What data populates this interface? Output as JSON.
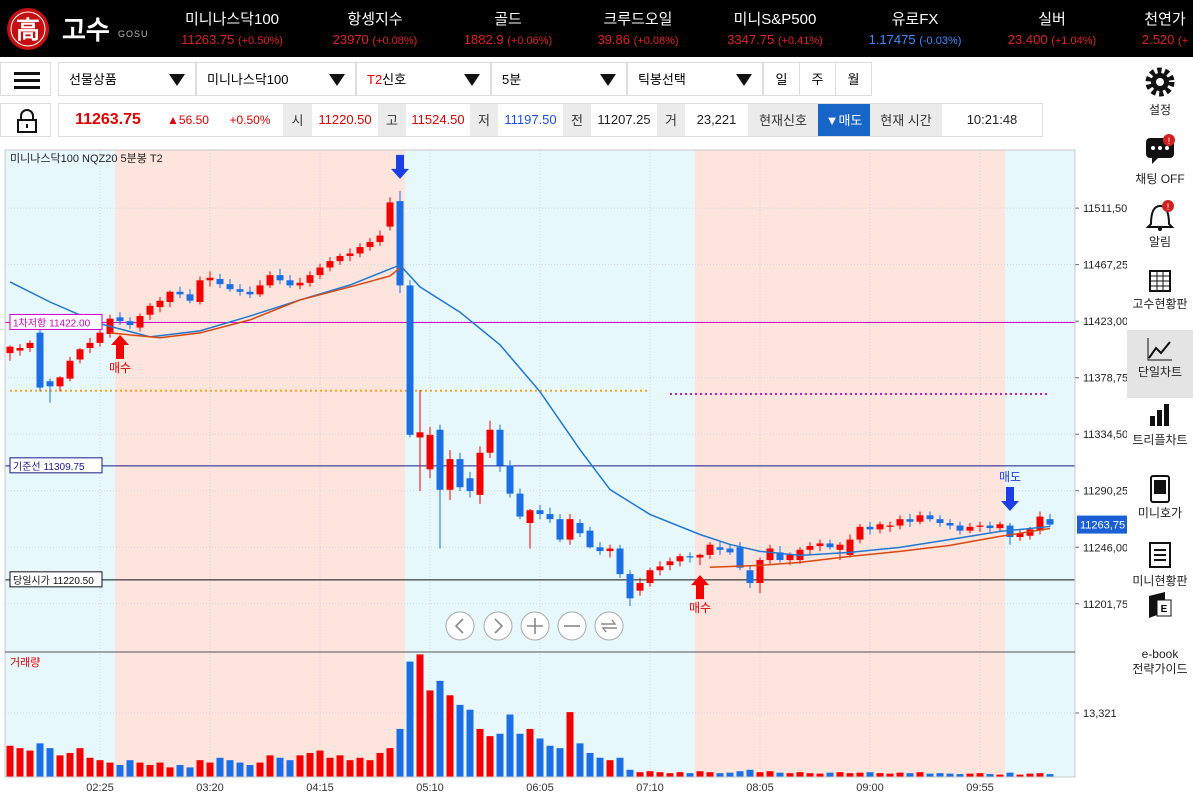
{
  "header": {
    "logo_char": "高",
    "logo_text": "고수",
    "logo_sub": "GOSU",
    "tickers": [
      {
        "name": "미니나스닥100",
        "price": "11263.75",
        "change": "(+0.50%)"
      },
      {
        "name": "항셍지수",
        "price": "23970",
        "change": "(+0.08%)"
      },
      {
        "name": "골드",
        "price": "1882.9",
        "change": "(+0.06%)"
      },
      {
        "name": "크루드오일",
        "price": "39.86",
        "change": "(+0.08%)"
      },
      {
        "name": "미니S&P500",
        "price": "3347.75",
        "change": "(+0.41%)"
      },
      {
        "name": "유로FX",
        "price": "1.17475",
        "change": "(-0.03%)"
      },
      {
        "name": "실버",
        "price": "23.400",
        "change": "(+1.04%)"
      },
      {
        "name": "천연가",
        "price": "2.520",
        "change": "(+"
      }
    ]
  },
  "toolbar": {
    "selects": [
      {
        "label": "선물상품"
      },
      {
        "label": "미니나스닥100"
      },
      {
        "prefix": "T2",
        "label": "신호"
      },
      {
        "label": "5분"
      },
      {
        "label": "틱봉선택"
      }
    ],
    "periods": [
      "일",
      "주",
      "월"
    ]
  },
  "quote": {
    "last": "11263.75",
    "change": "▲56.50",
    "rate": "+0.50%",
    "fields": [
      {
        "label": "시",
        "value": "11220.50"
      },
      {
        "label": "고",
        "value": "11524.50"
      },
      {
        "label": "저",
        "value": "11197.50"
      },
      {
        "label": "전",
        "value": "11207.25"
      },
      {
        "label": "거",
        "value": "23,221"
      }
    ],
    "signal_label": "현재신호",
    "signal": "▼매도",
    "time_label": "현재 시간",
    "time": "10:21:48"
  },
  "sidebar": [
    {
      "label": "설정"
    },
    {
      "label": "채팅 OFF"
    },
    {
      "label": "알림"
    },
    {
      "label": "고수현황판"
    },
    {
      "label": "단일차트"
    },
    {
      "label": "트리플차트"
    },
    {
      "label": "미니호가"
    },
    {
      "label": "미니현황판"
    },
    {
      "lines": [
        "e-book",
        "전략가이드"
      ]
    }
  ],
  "chart_data": {
    "type": "candlestick",
    "title": "미니나스닥100 NQZ20 5분봉 T2",
    "categories": [
      null,
      null,
      null,
      null,
      null,
      null,
      null,
      null,
      null,
      "02:25",
      null,
      null,
      null,
      null,
      null,
      null,
      null,
      null,
      null,
      null,
      "03:20",
      null,
      null,
      null,
      null,
      null,
      null,
      null,
      null,
      null,
      null,
      "04:15",
      null,
      null,
      null,
      null,
      null,
      null,
      null,
      null,
      null,
      null,
      "05:10",
      null,
      null,
      null,
      null,
      null,
      null,
      null,
      null,
      null,
      null,
      "06:05",
      null,
      null,
      null,
      null,
      null,
      null,
      null,
      null,
      null,
      null,
      "07:10",
      null,
      null,
      null,
      null,
      null,
      null,
      null,
      null,
      null,
      null,
      "08:05",
      null,
      null,
      null,
      null,
      null,
      null,
      null,
      null,
      null,
      null,
      "09:00",
      null,
      null,
      null,
      null,
      null,
      null,
      null,
      null,
      null,
      null,
      "09:55",
      null,
      null,
      null,
      null,
      null,
      null,
      null
    ],
    "ohlc": [
      [
        11398,
        11404,
        11392,
        11403
      ],
      [
        11400,
        11405,
        11396,
        11402
      ],
      [
        11402,
        11408,
        11399,
        11406
      ],
      [
        11414,
        11418,
        11368,
        11371
      ],
      [
        11376,
        11378,
        11359,
        11372
      ],
      [
        11372,
        11380,
        11368,
        11379
      ],
      [
        11378,
        11395,
        11376,
        11392
      ],
      [
        11393,
        11402,
        11390,
        11401
      ],
      [
        11402,
        11410,
        11398,
        11406
      ],
      [
        11406,
        11416,
        11403,
        11414
      ],
      [
        11413,
        11428,
        11410,
        11425
      ],
      [
        11426,
        11430,
        11420,
        11423
      ],
      [
        11423,
        11426,
        11417,
        11420
      ],
      [
        11418,
        11429,
        11415,
        11427
      ],
      [
        11428,
        11437,
        11424,
        11435
      ],
      [
        11434,
        11442,
        11430,
        11439
      ],
      [
        11438,
        11447,
        11434,
        11446
      ],
      [
        11446,
        11450,
        11441,
        11444
      ],
      [
        11444,
        11448,
        11437,
        11439
      ],
      [
        11438,
        11458,
        11436,
        11455
      ],
      [
        11455,
        11462,
        11450,
        11457
      ],
      [
        11456,
        11460,
        11449,
        11452
      ],
      [
        11452,
        11456,
        11446,
        11448
      ],
      [
        11448,
        11452,
        11443,
        11446
      ],
      [
        11446,
        11450,
        11441,
        11444
      ],
      [
        11444,
        11455,
        11442,
        11451
      ],
      [
        11451,
        11462,
        11449,
        11459
      ],
      [
        11459,
        11464,
        11452,
        11455
      ],
      [
        11455,
        11459,
        11449,
        11451
      ],
      [
        11451,
        11457,
        11448,
        11453
      ],
      [
        11453,
        11462,
        11450,
        11459
      ],
      [
        11459,
        11468,
        11456,
        11465
      ],
      [
        11465,
        11473,
        11462,
        11470
      ],
      [
        11470,
        11476,
        11467,
        11474
      ],
      [
        11474,
        11480,
        11470,
        11476
      ],
      [
        11476,
        11484,
        11473,
        11481
      ],
      [
        11481,
        11488,
        11478,
        11485
      ],
      [
        11485,
        11494,
        11482,
        11490
      ],
      [
        11497,
        11520,
        11494,
        11516
      ],
      [
        11517,
        11525,
        11445,
        11451
      ],
      [
        11451,
        11455,
        11332,
        11334
      ],
      [
        11332,
        11369,
        11290,
        11336
      ],
      [
        11307,
        11340,
        11300,
        11334
      ],
      [
        11338,
        11342,
        11245,
        11291
      ],
      [
        11291,
        11322,
        11283,
        11315
      ],
      [
        11315,
        11320,
        11290,
        11293
      ],
      [
        11300,
        11305,
        11285,
        11290
      ],
      [
        11287,
        11325,
        11280,
        11320
      ],
      [
        11320,
        11345,
        11316,
        11338
      ],
      [
        11338,
        11342,
        11305,
        11310
      ],
      [
        11310,
        11314,
        11285,
        11288
      ],
      [
        11288,
        11292,
        11268,
        11270
      ],
      [
        11265,
        11276,
        11245,
        11275
      ],
      [
        11275,
        11279,
        11268,
        11272
      ],
      [
        11272,
        11277,
        11265,
        11268
      ],
      [
        11268,
        11272,
        11250,
        11252
      ],
      [
        11252,
        11272,
        11248,
        11268
      ],
      [
        11265,
        11268,
        11254,
        11257
      ],
      [
        11259,
        11262,
        11245,
        11246
      ],
      [
        11246,
        11250,
        11240,
        11243
      ],
      [
        11243,
        11248,
        11238,
        11245
      ],
      [
        11245,
        11248,
        11222,
        11225
      ],
      [
        11225,
        11228,
        11200,
        11206
      ],
      [
        11212,
        11222,
        11208,
        11218
      ],
      [
        11218,
        11230,
        11215,
        11228
      ],
      [
        11228,
        11235,
        11224,
        11231
      ],
      [
        11232,
        11238,
        11228,
        11235
      ],
      [
        11235,
        11241,
        11231,
        11239
      ],
      [
        11239,
        11242,
        11234,
        11238
      ],
      [
        11238,
        11241,
        11232,
        11240
      ],
      [
        11240,
        11250,
        11237,
        11248
      ],
      [
        11246,
        11250,
        11240,
        11244
      ],
      [
        11245,
        11248,
        11240,
        11242
      ],
      [
        11246,
        11250,
        11228,
        11230
      ],
      [
        11228,
        11232,
        11214,
        11218
      ],
      [
        11218,
        11238,
        11210,
        11236
      ],
      [
        11236,
        11248,
        11233,
        11245
      ],
      [
        11242,
        11247,
        11234,
        11236
      ],
      [
        11236,
        11242,
        11232,
        11240
      ],
      [
        11236,
        11246,
        11233,
        11244
      ],
      [
        11244,
        11250,
        11240,
        11247
      ],
      [
        11247,
        11252,
        11243,
        11249
      ],
      [
        11249,
        11252,
        11244,
        11246
      ],
      [
        11244,
        11250,
        11236,
        11248
      ],
      [
        11240,
        11256,
        11238,
        11252
      ],
      [
        11252,
        11264,
        11249,
        11262
      ],
      [
        11262,
        11266,
        11256,
        11260
      ],
      [
        11260,
        11266,
        11257,
        11264
      ],
      [
        11262,
        11266,
        11258,
        11263
      ],
      [
        11263,
        11271,
        11260,
        11268
      ],
      [
        11268,
        11272,
        11262,
        11266
      ],
      [
        11266,
        11274,
        11264,
        11271
      ],
      [
        11271,
        11274,
        11266,
        11268
      ],
      [
        11268,
        11271,
        11262,
        11265
      ],
      [
        11265,
        11268,
        11260,
        11263
      ],
      [
        11263,
        11266,
        11256,
        11259
      ],
      [
        11259,
        11265,
        11257,
        11262
      ],
      [
        11262,
        11266,
        11258,
        11263
      ],
      [
        11263,
        11266,
        11258,
        11261
      ],
      [
        11261,
        11266,
        11258,
        11264
      ],
      [
        11263,
        11265,
        11248,
        11254
      ],
      [
        11254,
        11260,
        11251,
        11257
      ],
      [
        11255,
        11262,
        11252,
        11260
      ],
      [
        11259,
        11274,
        11256,
        11270
      ],
      [
        11268,
        11272,
        11262,
        11263.75
      ]
    ],
    "up_color": "#f40000",
    "down_color": "#1b6fe4",
    "ylim": [
      11164,
      11557
    ],
    "yticks": [
      {
        "value": 11511.5,
        "label": "11511,50"
      },
      {
        "value": 11467.25,
        "label": "11467,25"
      },
      {
        "value": 11423,
        "label": "11423,00"
      },
      {
        "value": 11378.75,
        "label": "11378,75"
      },
      {
        "value": 11334.5,
        "label": "11334,50"
      },
      {
        "value": 11290.25,
        "label": "11290,25"
      },
      {
        "value": 11246,
        "label": "11246,00"
      },
      {
        "value": 11201.75,
        "label": "11201,75"
      }
    ],
    "grid": true,
    "zones": [
      {
        "start": -1,
        "end": 11,
        "color": "#e7f8fd"
      },
      {
        "start": 11,
        "end": 40,
        "color": "#fde4dc"
      },
      {
        "start": 40,
        "end": 69,
        "color": "#e7f8fd"
      },
      {
        "start": 69,
        "end": 100,
        "color": "#fde4dc"
      },
      {
        "start": 100,
        "end": 108,
        "color": "#e7f8fd"
      }
    ],
    "ma": [
      {
        "color": "#1f78d1",
        "x": [
          0,
          4,
          9,
          14,
          19,
          24,
          29,
          34,
          39,
          41,
          45,
          49,
          53,
          57,
          60,
          64,
          69,
          72,
          75,
          79,
          84,
          89,
          94,
          99,
          104
        ],
        "values": [
          11453.7,
          11438,
          11421,
          11410.7,
          11415.4,
          11427,
          11439.6,
          11451.3,
          11467,
          11449.8,
          11430,
          11404.5,
          11367.8,
          11322.4,
          11291.2,
          11271.7,
          11256,
          11248.2,
          11242.8,
          11239.6,
          11242,
          11245.9,
          11252.1,
          11258.4,
          11262.3
        ]
      },
      {
        "color": "#d9480f",
        "x": [
          10,
          15,
          19,
          24,
          29,
          34,
          38,
          39,
          55,
          70,
          75,
          79,
          84,
          89,
          94,
          99,
          104
        ],
        "values": [
          11413.8,
          11410,
          11413.8,
          11424,
          11439.6,
          11449.8,
          11458.4,
          11464.6,
          null,
          11230.3,
          11231.8,
          11234.2,
          11238.9,
          11242.8,
          11247.5,
          11254.5,
          11260.7
        ]
      }
    ],
    "levels": [
      {
        "name": "1차저항",
        "value": 11422,
        "label": "11422.00",
        "color": "#d000c8"
      },
      {
        "name": "기준선",
        "value": 11309.75,
        "label": "11309.75",
        "color": "#1a1a8c"
      },
      {
        "name": "당일시가",
        "value": 11220.5,
        "label": "11220.50",
        "color": "#111111"
      }
    ],
    "dotted_lines": [
      {
        "value": 11368.5,
        "color": "#f5a623",
        "start": 0,
        "end": 64
      },
      {
        "value": 11366,
        "color": "#c21bc2",
        "start": 66,
        "end": 104
      }
    ],
    "signals": [
      {
        "type": "buy",
        "index": 11,
        "label": "매수"
      },
      {
        "type": "sell",
        "index": 39
      },
      {
        "type": "buy",
        "index": 69,
        "label": "매수"
      },
      {
        "type": "sell",
        "index": 100,
        "label": "매도"
      }
    ],
    "last": {
      "value": 11263.75,
      "label": "11263,75"
    },
    "volume": {
      "label": "거래량",
      "values": [
        6500,
        6000,
        5500,
        7000,
        6000,
        4500,
        5000,
        6000,
        4000,
        3500,
        3000,
        2500,
        3500,
        3000,
        2500,
        3000,
        2000,
        2500,
        2000,
        3500,
        3000,
        4000,
        3500,
        3000,
        2500,
        3000,
        4500,
        4000,
        3500,
        4500,
        5000,
        5500,
        4000,
        4500,
        3500,
        4000,
        3500,
        5000,
        6000,
        10000,
        24000,
        25500,
        18000,
        20000,
        17000,
        15000,
        14000,
        10000,
        8500,
        9000,
        13000,
        9000,
        10000,
        8000,
        6500,
        6000,
        13500,
        7000,
        5000,
        4000,
        3500,
        4000,
        1500,
        1000,
        1200,
        1000,
        800,
        1000,
        800,
        1200,
        1000,
        800,
        900,
        1200,
        1500,
        1000,
        1200,
        900,
        800,
        1000,
        800,
        700,
        900,
        1000,
        800,
        900,
        1000,
        800,
        700,
        900,
        800,
        1000,
        700,
        800,
        700,
        600,
        700,
        800,
        600,
        500,
        900,
        500,
        700,
        800,
        600
      ],
      "ylim": [
        0,
        26000
      ],
      "yticks": [
        {
          "value": 13321,
          "label": "13,321"
        }
      ]
    }
  }
}
